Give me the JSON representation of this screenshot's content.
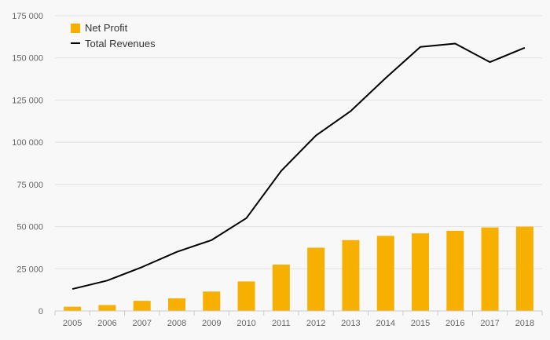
{
  "chart_data": {
    "type": "bar",
    "categories": [
      "2005",
      "2006",
      "2007",
      "2008",
      "2009",
      "2010",
      "2011",
      "2012",
      "2013",
      "2014",
      "2015",
      "2016",
      "2017",
      "2018"
    ],
    "series": [
      {
        "name": "Net Profit",
        "type": "bar",
        "color": "#f7b000",
        "values": [
          2500,
          3500,
          6000,
          7500,
          11500,
          17500,
          27500,
          37500,
          42000,
          44500,
          46000,
          47500,
          49500,
          50000
        ]
      },
      {
        "name": "Total Revenues",
        "type": "line",
        "color": "#000000",
        "values": [
          13000,
          18000,
          26000,
          35000,
          42000,
          55000,
          83000,
          104000,
          118500,
          138000,
          156500,
          158500,
          147500,
          156000
        ]
      }
    ],
    "ylim": [
      0,
      175000
    ],
    "yticks": [
      0,
      25000,
      50000,
      75000,
      100000,
      125000,
      150000,
      175000
    ],
    "ytick_labels": [
      "0",
      "25 000",
      "50 000",
      "75 000",
      "100 000",
      "125 000",
      "150 000",
      "175 000"
    ],
    "grid": true,
    "legend_position": "top-left"
  }
}
